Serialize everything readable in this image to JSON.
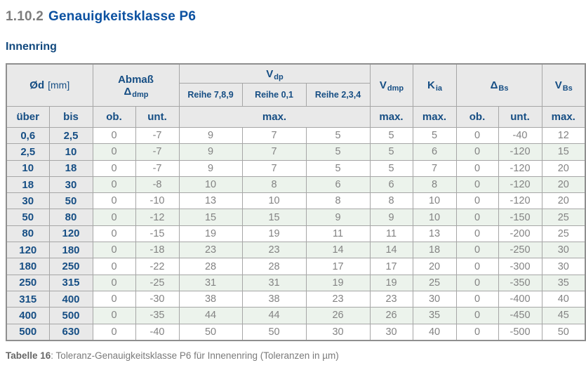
{
  "page": {
    "section_number": "1.10.2",
    "section_title": "Genauigkeitsklasse P6",
    "subtitle": "Innenring",
    "caption_label": "Tabelle 16",
    "caption_text": ": Toleranz-Genauigkeitsklasse P6 für Innenenring (Toleranzen in µm)"
  },
  "colors": {
    "heading_blue": "#0b51a1",
    "table_blue": "#164e84",
    "header_bg": "#e9e9e9",
    "alt_row_green": "#ecf3ec",
    "data_text_gray": "#838383",
    "border_gray": "#a6a6a6"
  },
  "table": {
    "header": {
      "od": {
        "symbol": "Ød",
        "unit": "[mm]"
      },
      "abmass": {
        "line1": "Abmaß",
        "symbol": "Δ",
        "sub": "dmp"
      },
      "vdp": {
        "main": "V",
        "sub": "dp"
      },
      "reihe": [
        "Reihe 7,8,9",
        "Reihe 0,1",
        "Reihe 2,3,4"
      ],
      "vdmp": {
        "main": "V",
        "sub": "dmp"
      },
      "kia": {
        "main": "K",
        "sub": "ia"
      },
      "dbs": {
        "main": "Δ",
        "sub": "Bs"
      },
      "vbs": {
        "main": "V",
        "sub": "Bs"
      },
      "sub": {
        "ueber": "über",
        "bis": "bis",
        "ob": "ob.",
        "unt": "unt.",
        "max": "max."
      }
    },
    "rows": [
      [
        "0,6",
        "2,5",
        "0",
        "-7",
        "9",
        "7",
        "5",
        "5",
        "5",
        "0",
        "-40",
        "12"
      ],
      [
        "2,5",
        "10",
        "0",
        "-7",
        "9",
        "7",
        "5",
        "5",
        "6",
        "0",
        "-120",
        "15"
      ],
      [
        "10",
        "18",
        "0",
        "-7",
        "9",
        "7",
        "5",
        "5",
        "7",
        "0",
        "-120",
        "20"
      ],
      [
        "18",
        "30",
        "0",
        "-8",
        "10",
        "8",
        "6",
        "6",
        "8",
        "0",
        "-120",
        "20"
      ],
      [
        "30",
        "50",
        "0",
        "-10",
        "13",
        "10",
        "8",
        "8",
        "10",
        "0",
        "-120",
        "20"
      ],
      [
        "50",
        "80",
        "0",
        "-12",
        "15",
        "15",
        "9",
        "9",
        "10",
        "0",
        "-150",
        "25"
      ],
      [
        "80",
        "120",
        "0",
        "-15",
        "19",
        "19",
        "11",
        "11",
        "13",
        "0",
        "-200",
        "25"
      ],
      [
        "120",
        "180",
        "0",
        "-18",
        "23",
        "23",
        "14",
        "14",
        "18",
        "0",
        "-250",
        "30"
      ],
      [
        "180",
        "250",
        "0",
        "-22",
        "28",
        "28",
        "17",
        "17",
        "20",
        "0",
        "-300",
        "30"
      ],
      [
        "250",
        "315",
        "0",
        "-25",
        "31",
        "31",
        "19",
        "19",
        "25",
        "0",
        "-350",
        "35"
      ],
      [
        "315",
        "400",
        "0",
        "-30",
        "38",
        "38",
        "23",
        "23",
        "30",
        "0",
        "-400",
        "40"
      ],
      [
        "400",
        "500",
        "0",
        "-35",
        "44",
        "44",
        "26",
        "26",
        "35",
        "0",
        "-450",
        "45"
      ],
      [
        "500",
        "630",
        "0",
        "-40",
        "50",
        "50",
        "30",
        "30",
        "40",
        "0",
        "-500",
        "50"
      ]
    ]
  }
}
